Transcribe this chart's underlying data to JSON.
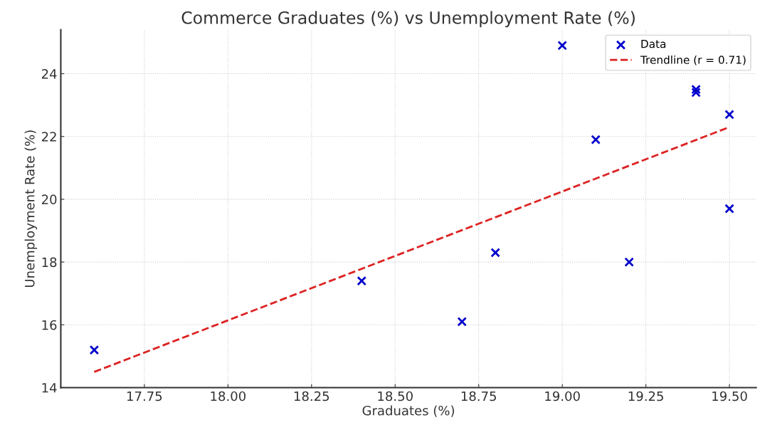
{
  "chart_data": {
    "type": "scatter",
    "title": "Commerce Graduates (%) vs Unemployment Rate (%)",
    "xlabel": "Graduates (%)",
    "ylabel": "Unemployment Rate (%)",
    "series": [
      {
        "name": "Data",
        "color": "#0000cc",
        "marker": "cross",
        "x": [
          17.6,
          18.4,
          18.7,
          18.8,
          19.0,
          19.1,
          19.2,
          19.4,
          19.4,
          19.5,
          19.5
        ],
        "values": [
          15.2,
          17.4,
          16.1,
          18.3,
          24.9,
          21.9,
          18.0,
          23.5,
          23.4,
          22.7,
          19.7
        ]
      },
      {
        "name": "Trendline (r = 0.71)",
        "type": "line",
        "color": "#dd2222",
        "line_style": "dashed",
        "x": [
          17.6,
          19.5
        ],
        "values": [
          14.5,
          22.3
        ]
      }
    ],
    "xlim": [
      17.5,
      19.58
    ],
    "ylim": [
      14,
      25.4
    ],
    "xticks": [
      {
        "value": 17.75,
        "label": "17.75"
      },
      {
        "value": 18.0,
        "label": "18.00"
      },
      {
        "value": 18.25,
        "label": "18.25"
      },
      {
        "value": 18.5,
        "label": "18.50"
      },
      {
        "value": 18.75,
        "label": "18.75"
      },
      {
        "value": 19.0,
        "label": "19.00"
      },
      {
        "value": 19.25,
        "label": "19.25"
      },
      {
        "value": 19.5,
        "label": "19.50"
      }
    ],
    "yticks": [
      14,
      16,
      18,
      20,
      22,
      24
    ],
    "grid": true,
    "legend": "top right"
  }
}
